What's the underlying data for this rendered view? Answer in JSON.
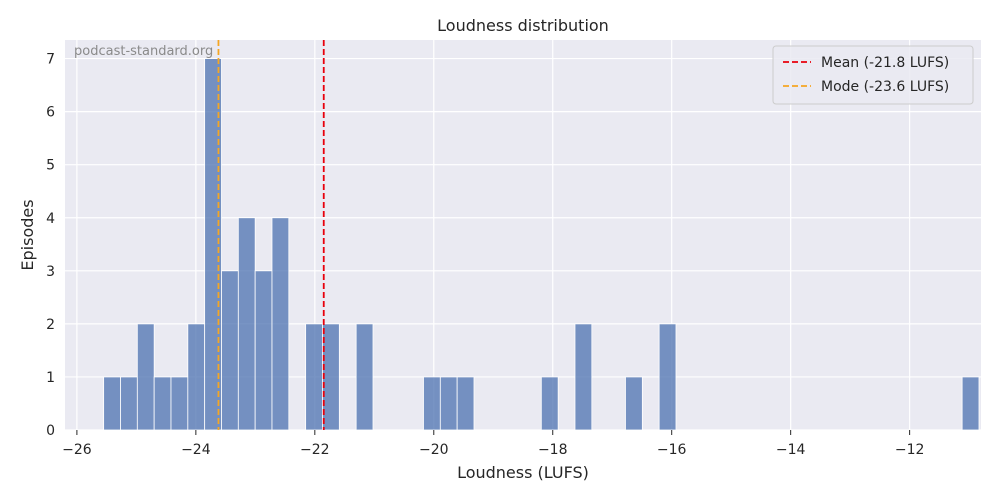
{
  "chart_data": {
    "type": "bar",
    "title": "Loudness distribution",
    "xlabel": "Loudness (LUFS)",
    "ylabel": "Episodes",
    "watermark": "podcast-standard.org",
    "xlim": [
      -26.2,
      -10.8
    ],
    "ylim": [
      0,
      7.35
    ],
    "xticks": [
      -26,
      -24,
      -22,
      -20,
      -18,
      -16,
      -14,
      -12
    ],
    "xtick_labels": [
      "−26",
      "−24",
      "−22",
      "−20",
      "−18",
      "−16",
      "−14",
      "−12"
    ],
    "yticks": [
      0,
      1,
      2,
      3,
      4,
      5,
      6,
      7
    ],
    "ytick_labels": [
      "0",
      "1",
      "2",
      "3",
      "4",
      "5",
      "6",
      "7"
    ],
    "bin_width": 0.283,
    "bins_start": -25.55,
    "counts": [
      1,
      1,
      2,
      1,
      1,
      2,
      7,
      3,
      4,
      3,
      4,
      0,
      2,
      2,
      0,
      2,
      0,
      0,
      0,
      1,
      1,
      1,
      0,
      0,
      0,
      0,
      1,
      0,
      2,
      0,
      0,
      1,
      0,
      2,
      0,
      0,
      0,
      0,
      0,
      0,
      0,
      0,
      0,
      0,
      0,
      0,
      0,
      0,
      0,
      0,
      0,
      1
    ],
    "bar_color": "#4c72b0",
    "vlines": [
      {
        "label": "Mean (-21.8 LUFS)",
        "x": -21.85,
        "color": "#e8000b"
      },
      {
        "label": "Mode (-23.6 LUFS)",
        "x": -23.62,
        "color": "#f5a623"
      }
    ],
    "grid": true,
    "legend_position": "top-right"
  }
}
